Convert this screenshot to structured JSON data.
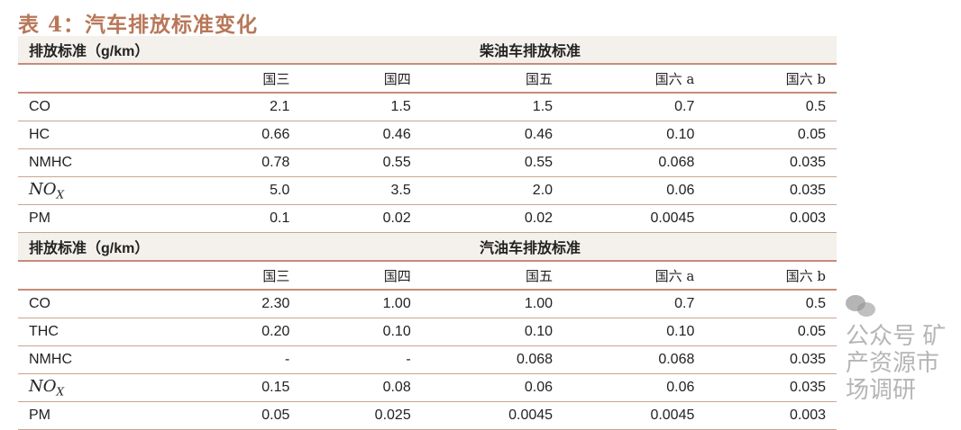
{
  "title": "表 4：汽车排放标准变化",
  "columns": [
    "国三",
    "国四",
    "国五",
    "国六 a",
    "国六 b"
  ],
  "sections": [
    {
      "unit_label": "排放标准（g/km）",
      "group_label": "柴油车排放标准",
      "rows": [
        {
          "label": "CO",
          "values": [
            "2.1",
            "1.5",
            "1.5",
            "0.7",
            "0.5"
          ]
        },
        {
          "label": "HC",
          "values": [
            "0.66",
            "0.46",
            "0.46",
            "0.10",
            "0.05"
          ]
        },
        {
          "label": "NMHC",
          "values": [
            "0.78",
            "0.55",
            "0.55",
            "0.068",
            "0.035"
          ]
        },
        {
          "label": "NO",
          "sub": "X",
          "values": [
            "5.0",
            "3.5",
            "2.0",
            "0.06",
            "0.035"
          ]
        },
        {
          "label": "PM",
          "values": [
            "0.1",
            "0.02",
            "0.02",
            "0.0045",
            "0.003"
          ]
        }
      ]
    },
    {
      "unit_label": "排放标准（g/km）",
      "group_label": "汽油车排放标准",
      "rows": [
        {
          "label": "CO",
          "values": [
            "2.30",
            "1.00",
            "1.00",
            "0.7",
            "0.5"
          ]
        },
        {
          "label": "THC",
          "values": [
            "0.20",
            "0.10",
            "0.10",
            "0.10",
            "0.05"
          ]
        },
        {
          "label": "NMHC",
          "values": [
            "-",
            "-",
            "0.068",
            "0.068",
            "0.035"
          ]
        },
        {
          "label": "NO",
          "sub": "X",
          "values": [
            "0.15",
            "0.08",
            "0.06",
            "0.06",
            "0.035"
          ]
        },
        {
          "label": "PM",
          "values": [
            "0.05",
            "0.025",
            "0.0045",
            "0.0045",
            "0.003"
          ]
        }
      ]
    }
  ],
  "watermark": "公众号 · 矿产资源市场调研",
  "watermark_text": "公众号 矿产资源市场调研",
  "colors": {
    "title": "#b87758",
    "rule": "#c48c78",
    "header_bg": "#f4f1ec"
  }
}
